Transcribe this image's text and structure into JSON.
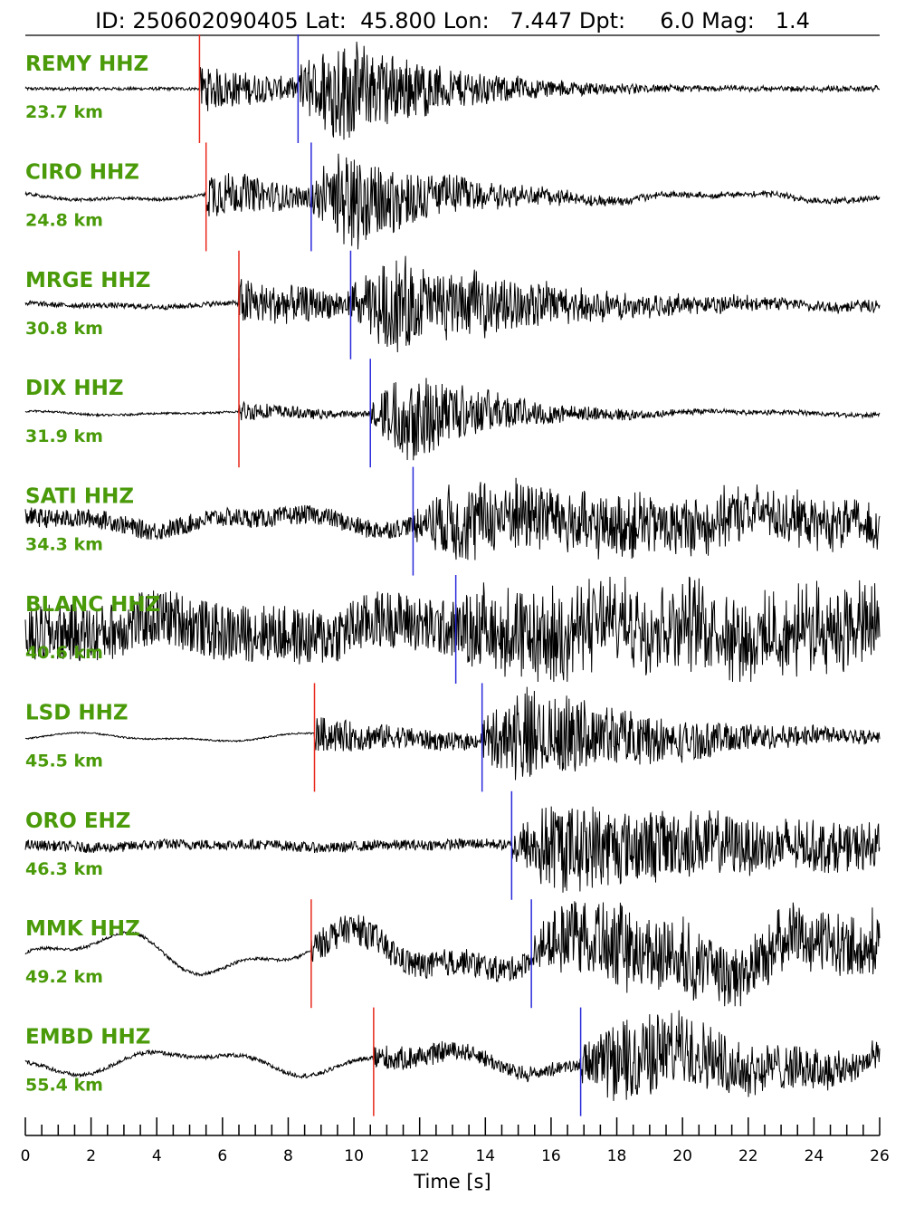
{
  "header": {
    "id_label": "ID:",
    "id": "250602090405",
    "lat_label": "Lat:",
    "lat": "45.800",
    "lon_label": "Lon:",
    "lon": "7.447",
    "dpt_label": "Dpt:",
    "dpt": "6.0",
    "mag_label": "Mag:",
    "mag": "1.4"
  },
  "colors": {
    "label": "#4a9a0a",
    "p_pick": "#e8291c",
    "s_pick": "#2a2adb",
    "trace": "#000000"
  },
  "chart_data": {
    "type": "line",
    "xlabel": "Time [s]",
    "xlim": [
      0,
      26
    ],
    "major_ticks": [
      0,
      2,
      4,
      6,
      8,
      10,
      12,
      14,
      16,
      18,
      20,
      22,
      24,
      26
    ],
    "minor_tick_step": 0.5,
    "series": [
      {
        "name": "REMY HHZ",
        "distance": "23.7 km",
        "p": 5.3,
        "s": 8.3,
        "noise": 0.03,
        "lowfreq": 0.0,
        "pamp": 0.45,
        "samp": 1.0,
        "decay": 0.28,
        "tail": 0.04
      },
      {
        "name": "CIRO HHZ",
        "distance": "24.8 km",
        "p": 5.5,
        "s": 8.7,
        "noise": 0.03,
        "lowfreq": 0.06,
        "pamp": 0.5,
        "samp": 0.9,
        "decay": 0.3,
        "tail": 0.05
      },
      {
        "name": "MRGE HHZ",
        "distance": "30.8 km",
        "p": 6.5,
        "s": 9.9,
        "noise": 0.05,
        "lowfreq": 0.03,
        "pamp": 0.45,
        "samp": 0.85,
        "decay": 0.18,
        "tail": 0.1
      },
      {
        "name": "DIX HHZ",
        "distance": "31.9 km",
        "p": 6.5,
        "s": 10.5,
        "noise": 0.02,
        "lowfreq": 0.03,
        "pamp": 0.2,
        "samp": 0.9,
        "decay": 0.35,
        "tail": 0.04
      },
      {
        "name": "SATI HHZ",
        "distance": "34.3 km",
        "p": null,
        "s": 11.8,
        "noise": 0.18,
        "lowfreq": 0.12,
        "pamp": 0.0,
        "samp": 0.7,
        "decay": 0.05,
        "tail": 0.25
      },
      {
        "name": "BLANC HHZ",
        "distance": "40.6 km",
        "p": null,
        "s": 13.1,
        "noise": 0.55,
        "lowfreq": 0.15,
        "pamp": 0.0,
        "samp": 0.55,
        "decay": 0.02,
        "tail": 0.4
      },
      {
        "name": "LSD HHZ",
        "distance": "45.5 km",
        "p": 8.8,
        "s": 13.9,
        "noise": 0.015,
        "lowfreq": 0.06,
        "pamp": 0.35,
        "samp": 0.9,
        "decay": 0.18,
        "tail": 0.06
      },
      {
        "name": "ORO EHZ",
        "distance": "46.3 km",
        "p": null,
        "s": 14.8,
        "noise": 0.1,
        "lowfreq": 0.03,
        "pamp": 0.0,
        "samp": 0.85,
        "decay": 0.08,
        "tail": 0.25
      },
      {
        "name": "MMK HHZ",
        "distance": "49.2 km",
        "p": 8.7,
        "s": 15.4,
        "noise": 0.03,
        "lowfreq": 0.32,
        "pamp": 0.3,
        "samp": 0.75,
        "decay": 0.04,
        "tail": 0.35
      },
      {
        "name": "EMBD HHZ",
        "distance": "55.4 km",
        "p": 10.6,
        "s": 16.9,
        "noise": 0.04,
        "lowfreq": 0.18,
        "pamp": 0.25,
        "samp": 0.9,
        "decay": 0.15,
        "tail": 0.15
      }
    ]
  }
}
